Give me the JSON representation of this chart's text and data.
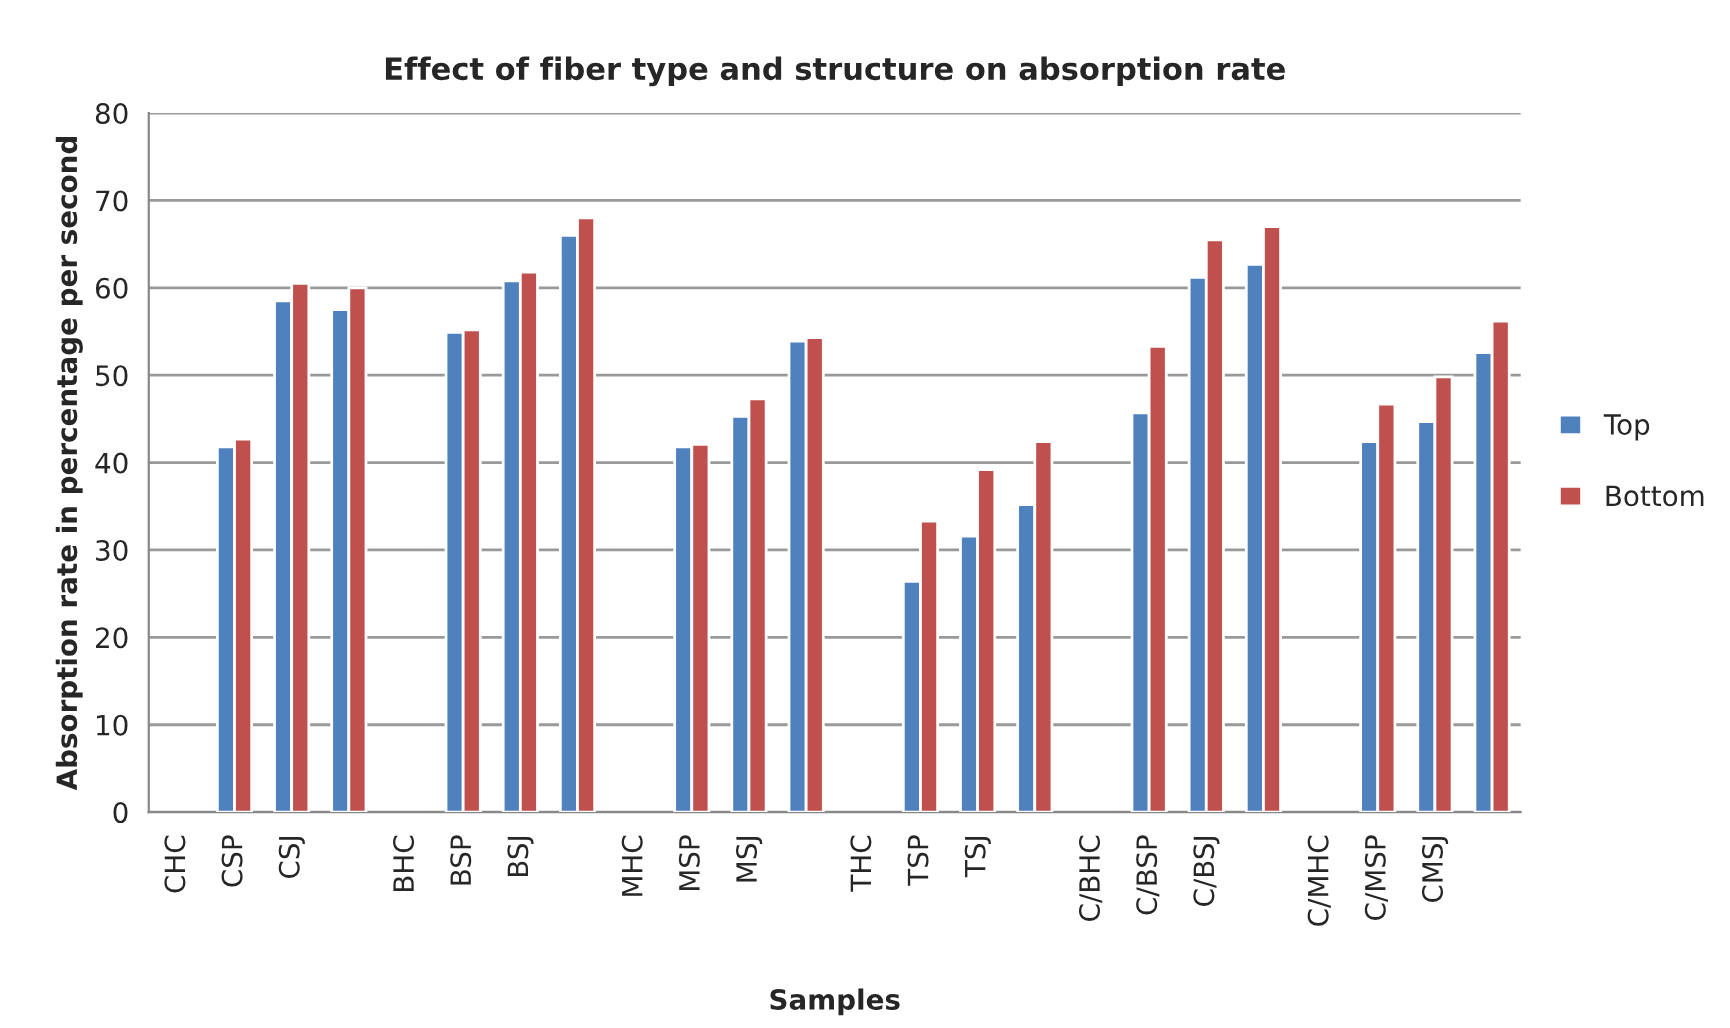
{
  "chart_data": {
    "type": "bar",
    "title": "Effect of fiber type and structure on absorption rate",
    "xlabel": "Samples",
    "ylabel": "Absorption rate in percentage per second",
    "categories": [
      "CHC",
      "CSP",
      "CSJ",
      null,
      "BHC",
      "BSP",
      "BSJ",
      null,
      "MHC",
      "MSP",
      "MSJ",
      null,
      "THC",
      "TSP",
      "TSJ",
      null,
      "C/BHC",
      "C/BSP",
      "C/BSJ",
      null,
      "C/MHC",
      "C/MSP",
      "CMSJ",
      null
    ],
    "series": [
      {
        "name": "Top",
        "color": "#4f81bd",
        "values": [
          null,
          41.8,
          58.5,
          57.5,
          null,
          54.9,
          60.8,
          66.0,
          null,
          41.8,
          45.3,
          53.9,
          null,
          26.4,
          31.6,
          35.2,
          null,
          45.7,
          61.2,
          62.7,
          null,
          42.4,
          44.7,
          52.6
        ]
      },
      {
        "name": "Bottom",
        "color": "#c0504d",
        "values": [
          null,
          42.7,
          60.5,
          60.0,
          null,
          55.2,
          61.8,
          68.0,
          null,
          42.1,
          47.3,
          54.3,
          null,
          33.3,
          39.2,
          42.4,
          null,
          53.3,
          65.5,
          67.0,
          null,
          46.7,
          49.8,
          56.2
        ]
      }
    ],
    "ylim": [
      0,
      80
    ],
    "yticks": [
      0,
      10,
      20,
      30,
      40,
      50,
      60,
      70,
      80
    ],
    "grid": "y",
    "legend": "right"
  }
}
